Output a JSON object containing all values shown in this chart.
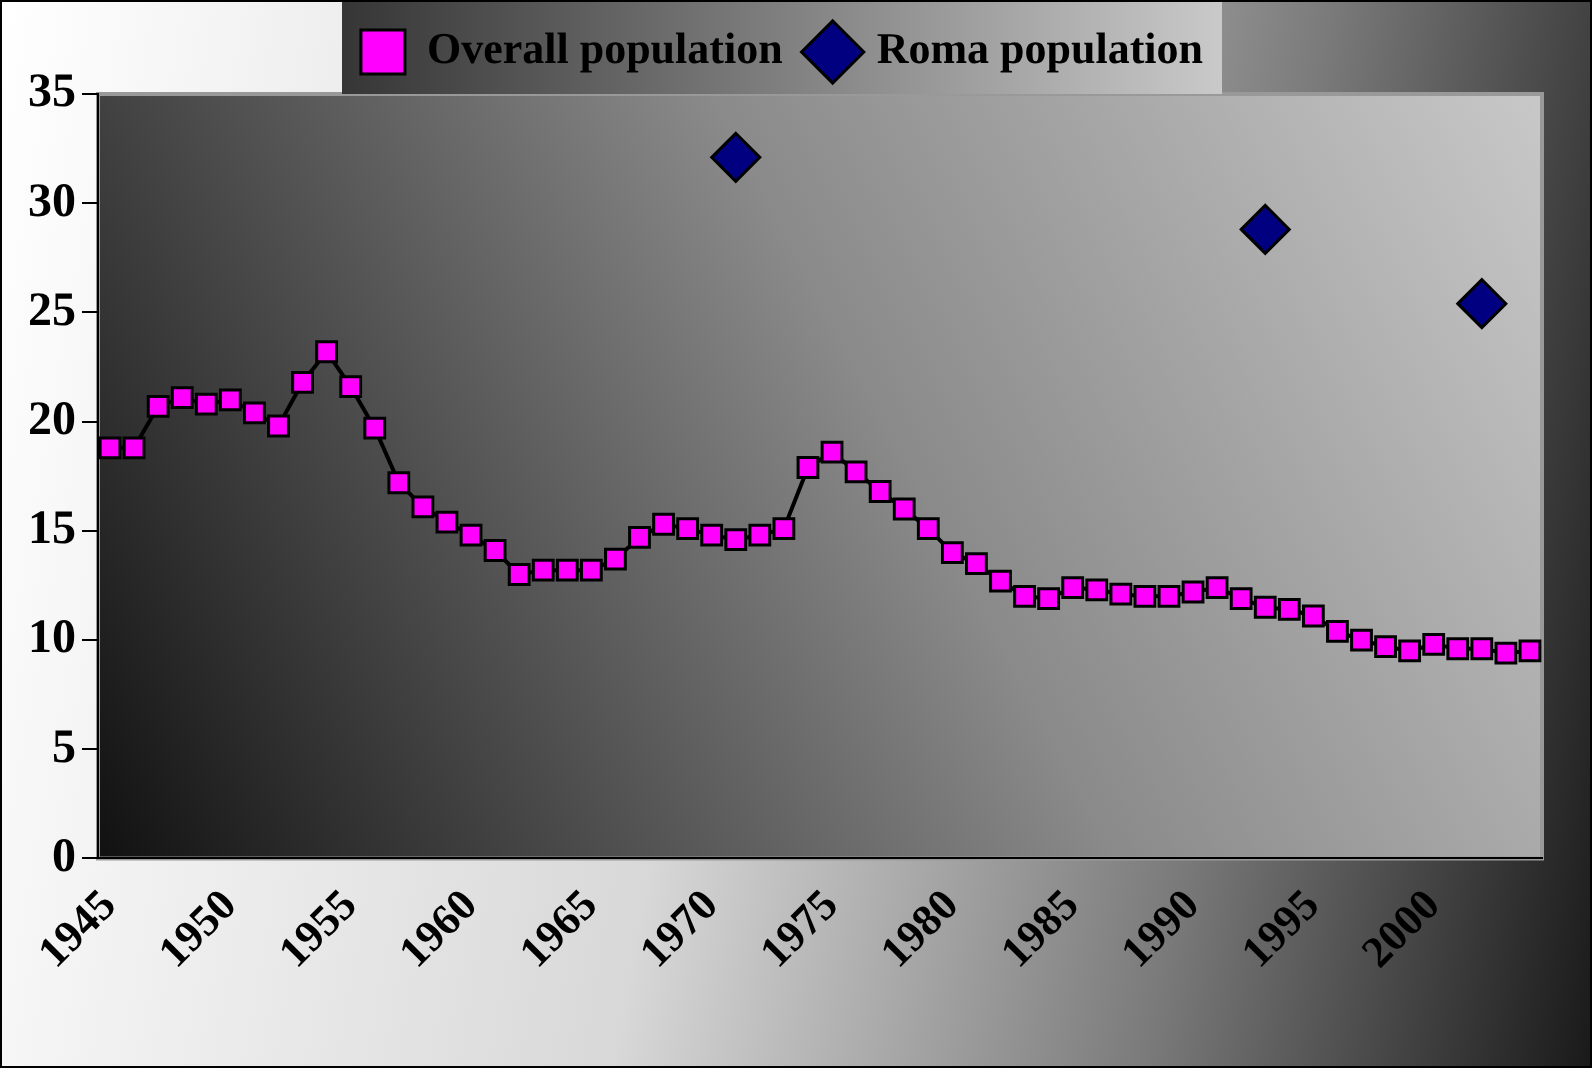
{
  "chart_data": {
    "type": "line",
    "categories": [
      "1945",
      null,
      null,
      null,
      null,
      "1950",
      null,
      null,
      null,
      null,
      "1955",
      null,
      null,
      null,
      null,
      "1960",
      null,
      null,
      null,
      null,
      "1965",
      null,
      null,
      null,
      null,
      "1970",
      null,
      null,
      null,
      null,
      "1975",
      null,
      null,
      null,
      null,
      "1980",
      null,
      null,
      null,
      null,
      "1985",
      null,
      null,
      null,
      null,
      "1990",
      null,
      null,
      null,
      null,
      "1995",
      null,
      null,
      null,
      null,
      "2000",
      null,
      null,
      null,
      null
    ],
    "series": [
      {
        "name": "Overall population",
        "color": "#ff00ff",
        "marker": "square",
        "values": [
          18.8,
          18.8,
          20.7,
          21.1,
          20.8,
          21.0,
          20.4,
          19.8,
          21.8,
          23.2,
          21.6,
          19.7,
          17.2,
          16.1,
          15.4,
          14.8,
          14.1,
          13.0,
          13.2,
          13.2,
          13.2,
          13.7,
          14.7,
          15.3,
          15.1,
          14.8,
          14.6,
          14.8,
          15.1,
          17.9,
          18.6,
          17.7,
          16.8,
          16.0,
          15.1,
          14.0,
          13.5,
          12.7,
          12.0,
          11.9,
          12.4,
          12.3,
          12.1,
          12.0,
          12.0,
          12.2,
          12.4,
          11.9,
          11.5,
          11.4,
          11.1,
          10.4,
          10.0,
          9.7,
          9.5,
          9.8,
          9.6,
          9.6,
          9.4,
          9.5
        ]
      },
      {
        "name": "Roma population",
        "type": "scatter",
        "color": "#000080",
        "marker": "diamond",
        "values": [
          null,
          null,
          null,
          null,
          null,
          null,
          null,
          null,
          null,
          null,
          null,
          null,
          null,
          null,
          null,
          null,
          null,
          null,
          null,
          null,
          null,
          null,
          null,
          null,
          null,
          null,
          32.1,
          null,
          null,
          null,
          null,
          null,
          null,
          null,
          null,
          null,
          null,
          null,
          null,
          null,
          null,
          null,
          null,
          null,
          null,
          null,
          null,
          null,
          28.8,
          null,
          null,
          null,
          null,
          null,
          null,
          null,
          null,
          25.4,
          null,
          null
        ]
      }
    ],
    "ylim": [
      0,
      35
    ],
    "yticks": [
      0,
      5,
      10,
      15,
      20,
      25,
      30,
      35
    ],
    "grid": false,
    "legend": "top"
  }
}
